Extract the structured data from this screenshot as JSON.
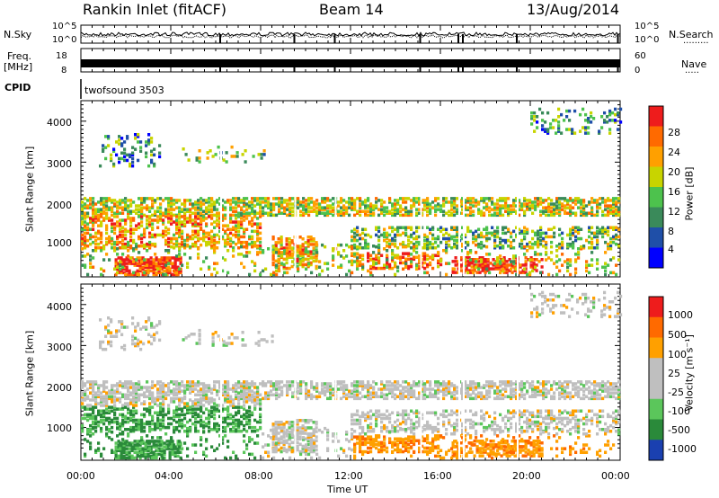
{
  "header": {
    "station": "Rankin Inlet (fitACF)",
    "beam": "Beam 14",
    "date": "13/Aug/2014"
  },
  "noise_panel": {
    "left_label": "N.Sky",
    "right_label": "N.Search",
    "left_ticks": [
      "10^5",
      "10^0"
    ],
    "right_ticks": [
      "10^5",
      "10^0"
    ]
  },
  "freq_panel": {
    "left_label_1": "Freq.",
    "left_label_2": "[MHz]",
    "right_label": "Nave",
    "left_ticks": [
      "18",
      "8"
    ],
    "right_ticks": [
      "60",
      "0"
    ]
  },
  "cpid_panel": {
    "label": "CPID",
    "value": "twofsound 3503"
  },
  "power_panel": {
    "ylabel": "Slant Range [km]",
    "yticks": [
      "4000",
      "3000",
      "2000",
      "1000"
    ],
    "colorbar_label": "Power [dB]",
    "colorbar_ticks": [
      "28",
      "24",
      "20",
      "16",
      "12",
      "8",
      "4"
    ],
    "colors": [
      "#0000ff",
      "#1f4fa8",
      "#3a8a5a",
      "#4dc24d",
      "#c8d400",
      "#ffa000",
      "#ff6a00",
      "#ee1c1c"
    ]
  },
  "velocity_panel": {
    "ylabel": "Slant Range [km]",
    "yticks": [
      "4000",
      "3000",
      "2000",
      "1000"
    ],
    "colorbar_label": "Velocity [m s⁻¹]",
    "colorbar_ticks": [
      "1000",
      "500",
      "100",
      "25",
      "-25",
      "-100",
      "-500",
      "-1000"
    ],
    "colors": [
      "#1a40b0",
      "#2a8a3a",
      "#5bc65b",
      "#bfbfbf",
      "#bfbfbf",
      "#ffa000",
      "#ff6a00",
      "#ee1c1c"
    ]
  },
  "x_axis": {
    "ticks": [
      "00:00",
      "04:00",
      "08:00",
      "12:00",
      "16:00",
      "20:00",
      "00:00"
    ],
    "label": "Time UT"
  },
  "chart_data": {
    "type": "heatmap",
    "x_range_hours": [
      0,
      24
    ],
    "y_range_km": [
      200,
      4500
    ],
    "power_scale_db": [
      0,
      30
    ],
    "velocity_scale_ms": [
      -1000,
      1000
    ]
  }
}
